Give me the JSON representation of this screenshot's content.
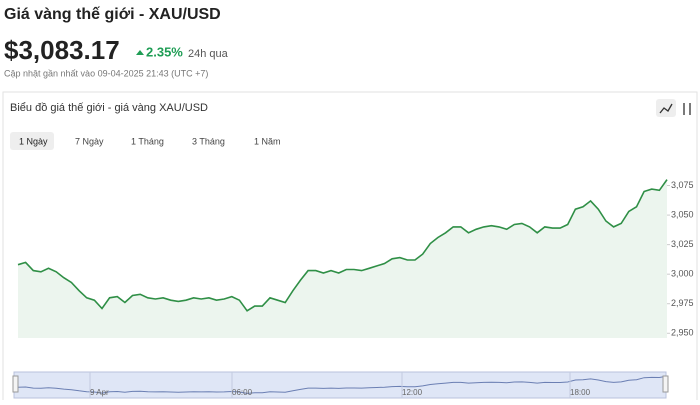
{
  "header": {
    "title": "Giá vàng thế giới - XAU/USD",
    "price": "$3,083.17",
    "change": "2.35%",
    "period": "24h qua",
    "updated": "Cập nhật gần nhất vào 09-04-2025 21:43 (UTC +7)"
  },
  "tabs": [
    "1 Ngày",
    "7 Ngày",
    "1 Tháng",
    "3 Tháng",
    "1 Năm"
  ],
  "chart_data": {
    "type": "area",
    "title": "Biểu đồ giá thế giới - giá vàng XAU/USD",
    "color": "#2f8f46",
    "values": [
      3008,
      3010,
      3003,
      3002,
      3005,
      3002,
      2997,
      2993,
      2986,
      2980,
      2978,
      2971,
      2980,
      2981,
      2976,
      2982,
      2983,
      2980,
      2979,
      2980,
      2978,
      2977,
      2978,
      2980,
      2979,
      2980,
      2978,
      2979,
      2981,
      2978,
      2969,
      2973,
      2973,
      2980,
      2978,
      2976,
      2986,
      2995,
      3003,
      3003,
      3001,
      3003,
      3001,
      3004,
      3004,
      3003,
      3005,
      3007,
      3009,
      3013,
      3014,
      3012,
      3012,
      3017,
      3026,
      3031,
      3035,
      3040,
      3040,
      3035,
      3038,
      3040,
      3041,
      3040,
      3038,
      3042,
      3043,
      3040,
      3035,
      3040,
      3039,
      3039,
      3042,
      3055,
      3057,
      3062,
      3055,
      3045,
      3040,
      3043,
      3053,
      3057,
      3070,
      3072,
      3071,
      3080
    ],
    "ylim": [
      2946,
      3100
    ],
    "yticks": [
      {
        "value": 2950,
        "label": "2,950"
      },
      {
        "value": 2975,
        "label": "2,975"
      },
      {
        "value": 3000,
        "label": "3,000"
      },
      {
        "value": 3025,
        "label": "3,025"
      },
      {
        "value": 3050,
        "label": "3,050"
      },
      {
        "value": 3075,
        "label": "3,075"
      }
    ]
  },
  "navigator": {
    "labels": [
      "9 Apr",
      "06:00",
      "12:00",
      "18:00"
    ]
  }
}
